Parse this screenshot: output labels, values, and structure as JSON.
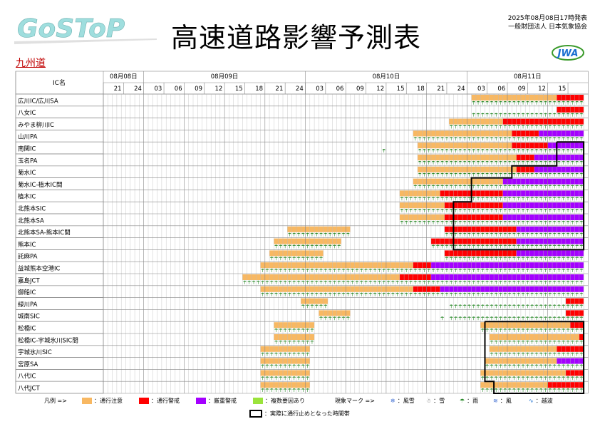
{
  "header": {
    "logo_text": "GoSToP",
    "title": "高速道路影響予測表",
    "issued_line1": "2025年08月08日17時発表",
    "issued_line2": "一般財団法人 日本気象協会",
    "org_logo": "JWA",
    "region": "九州道"
  },
  "table": {
    "ic_header": "IC名",
    "dates": [
      {
        "label": "08月08日",
        "start": 0,
        "span": 2
      },
      {
        "label": "08月09日",
        "start": 2,
        "span": 8
      },
      {
        "label": "08月10日",
        "start": 10,
        "span": 8
      },
      {
        "label": "08月11日",
        "start": 18,
        "span": 6
      }
    ],
    "hours": [
      "21",
      "24",
      "03",
      "06",
      "09",
      "12",
      "15",
      "18",
      "21",
      "24",
      "03",
      "06",
      "09",
      "12",
      "15",
      "18",
      "21",
      "24",
      "03",
      "06",
      "09",
      "12",
      "15",
      ""
    ],
    "rows": [
      "広川IC/広川SA",
      "八女IC",
      "みやま柳川IC",
      "山川PA",
      "南関IC",
      "玉名PA",
      "菊水IC",
      "菊水IC-植木IC間",
      "植木IC",
      "北熊本SIC",
      "北熊本SA",
      "北熊本SA-熊本IC間",
      "熊本IC",
      "託麻PA",
      "益城熊本空港IC",
      "嘉島JCT",
      "御船IC",
      "緑川PA",
      "城南SIC",
      "松橋IC",
      "松橋IC-宇城氷川SIC間",
      "宇城氷川SIC",
      "宮原SA",
      "八代IC",
      "八代JCT"
    ],
    "colors": {
      "caution": "#f8b862",
      "warning": "#ff0000",
      "severe": "#a400ff",
      "multi": "#9be33c"
    },
    "rain_icon": "umbrella-icon",
    "bands": [
      [
        [
          82,
          101,
          "c"
        ],
        [
          101,
          107,
          "r"
        ]
      ],
      [
        [
          101,
          107,
          "r"
        ]
      ],
      [
        [
          77,
          89,
          "c"
        ],
        [
          89,
          107,
          "r"
        ]
      ],
      [
        [
          69,
          91,
          "c"
        ],
        [
          91,
          97,
          "r"
        ],
        [
          97,
          107,
          "s"
        ]
      ],
      [
        [
          70,
          91,
          "c"
        ],
        [
          91,
          99,
          "r"
        ],
        [
          99,
          107,
          "s"
        ]
      ],
      [
        [
          70,
          92,
          "c"
        ],
        [
          92,
          96,
          "r"
        ],
        [
          96,
          107,
          "s"
        ]
      ],
      [
        [
          70,
          92,
          "c"
        ],
        [
          92,
          96,
          "r"
        ],
        [
          96,
          107,
          "s"
        ]
      ],
      [
        [
          69,
          89,
          "c"
        ],
        [
          89,
          107,
          "s"
        ]
      ],
      [
        [
          66,
          75,
          "c"
        ],
        [
          75,
          89,
          "r"
        ],
        [
          89,
          107,
          "s"
        ]
      ],
      [
        [
          66,
          76,
          "c"
        ],
        [
          76,
          89,
          "r"
        ],
        [
          89,
          107,
          "s"
        ]
      ],
      [
        [
          66,
          76,
          "c"
        ],
        [
          76,
          89,
          "r"
        ],
        [
          89,
          107,
          "s"
        ]
      ],
      [
        [
          41,
          55,
          "c"
        ],
        [
          76,
          92,
          "r"
        ],
        [
          92,
          107,
          "s"
        ]
      ],
      [
        [
          38,
          53,
          "c"
        ],
        [
          73,
          92,
          "r"
        ],
        [
          92,
          107,
          "s"
        ]
      ],
      [
        [
          37,
          49,
          "c"
        ],
        [
          76,
          92,
          "r"
        ],
        [
          92,
          107,
          "s"
        ]
      ],
      [
        [
          35,
          69,
          "c"
        ],
        [
          69,
          73,
          "r"
        ],
        [
          73,
          107,
          "s"
        ]
      ],
      [
        [
          31,
          66,
          "c"
        ],
        [
          66,
          73,
          "r"
        ],
        [
          73,
          107,
          "s"
        ]
      ],
      [
        [
          35,
          69,
          "c"
        ],
        [
          69,
          75,
          "r"
        ],
        [
          75,
          107,
          "s"
        ]
      ],
      [
        [
          44,
          50,
          "c"
        ],
        [
          103,
          107,
          "r"
        ]
      ],
      [
        [
          48,
          55,
          "c"
        ],
        [
          103,
          107,
          "r"
        ]
      ],
      [
        [
          38,
          47,
          "c"
        ],
        [
          84,
          104,
          "c"
        ],
        [
          104,
          107,
          "r"
        ]
      ],
      [
        [
          38,
          47,
          "c"
        ],
        [
          86,
          106,
          "c"
        ],
        [
          106,
          107,
          "r"
        ]
      ],
      [
        [
          35,
          46,
          "c"
        ],
        [
          86,
          101,
          "c"
        ],
        [
          101,
          107,
          "r"
        ]
      ],
      [
        [
          35,
          46,
          "c"
        ],
        [
          85,
          101,
          "c"
        ],
        [
          101,
          107,
          "s"
        ]
      ],
      [
        [
          35,
          46,
          "c"
        ],
        [
          84,
          103,
          "c"
        ],
        [
          103,
          107,
          "r"
        ]
      ],
      [
        [
          35,
          46,
          "c"
        ],
        [
          84,
          99,
          "c"
        ],
        [
          99,
          107,
          "r"
        ]
      ]
    ],
    "rain_ranges": [
      [
        [
          82,
          107
        ]
      ],
      [
        [
          82,
          107
        ]
      ],
      [
        [
          77,
          107
        ]
      ],
      [
        [
          69,
          107
        ]
      ],
      [
        [
          62,
          63
        ],
        [
          70,
          107
        ]
      ],
      [
        [
          70,
          107
        ]
      ],
      [
        [
          70,
          107
        ]
      ],
      [
        [
          69,
          107
        ]
      ],
      [
        [
          66,
          107
        ]
      ],
      [
        [
          66,
          107
        ]
      ],
      [
        [
          66,
          107
        ]
      ],
      [
        [
          41,
          55
        ],
        [
          76,
          107
        ]
      ],
      [
        [
          38,
          53
        ],
        [
          73,
          107
        ]
      ],
      [
        [
          37,
          49
        ],
        [
          76,
          107
        ]
      ],
      [
        [
          35,
          107
        ]
      ],
      [
        [
          31,
          107
        ]
      ],
      [
        [
          35,
          107
        ]
      ],
      [
        [
          44,
          50
        ],
        [
          77,
          107
        ]
      ],
      [
        [
          48,
          55
        ],
        [
          75,
          76
        ],
        [
          77,
          107
        ]
      ],
      [
        [
          38,
          47
        ],
        [
          84,
          107
        ]
      ],
      [
        [
          38,
          47
        ],
        [
          86,
          107
        ]
      ],
      [
        [
          35,
          46
        ],
        [
          86,
          107
        ]
      ],
      [
        [
          35,
          46
        ],
        [
          85,
          107
        ]
      ],
      [
        [
          35,
          46
        ],
        [
          84,
          107
        ]
      ],
      [
        [
          35,
          46
        ],
        [
          84,
          107
        ]
      ]
    ]
  },
  "legend": {
    "label": "凡例 =>",
    "items": [
      {
        "color": "#f8b862",
        "text": "：通行注意"
      },
      {
        "color": "#ff0000",
        "text": "：通行警戒"
      },
      {
        "color": "#a400ff",
        "text": "：厳重警戒"
      },
      {
        "color": "#9be33c",
        "text": "：複数要因あり"
      }
    ],
    "mark_label": "現象マーク =>",
    "marks": [
      {
        "icon": "snowstorm-icon",
        "text": "：風雪"
      },
      {
        "icon": "snow-icon",
        "text": "：雪"
      },
      {
        "icon": "umbrella-icon",
        "text": "：雨"
      },
      {
        "icon": "wind-icon",
        "text": "：風"
      },
      {
        "icon": "wave-icon",
        "text": "：越波"
      }
    ],
    "closure_text": "：実際に通行止めとなった時間帯"
  }
}
